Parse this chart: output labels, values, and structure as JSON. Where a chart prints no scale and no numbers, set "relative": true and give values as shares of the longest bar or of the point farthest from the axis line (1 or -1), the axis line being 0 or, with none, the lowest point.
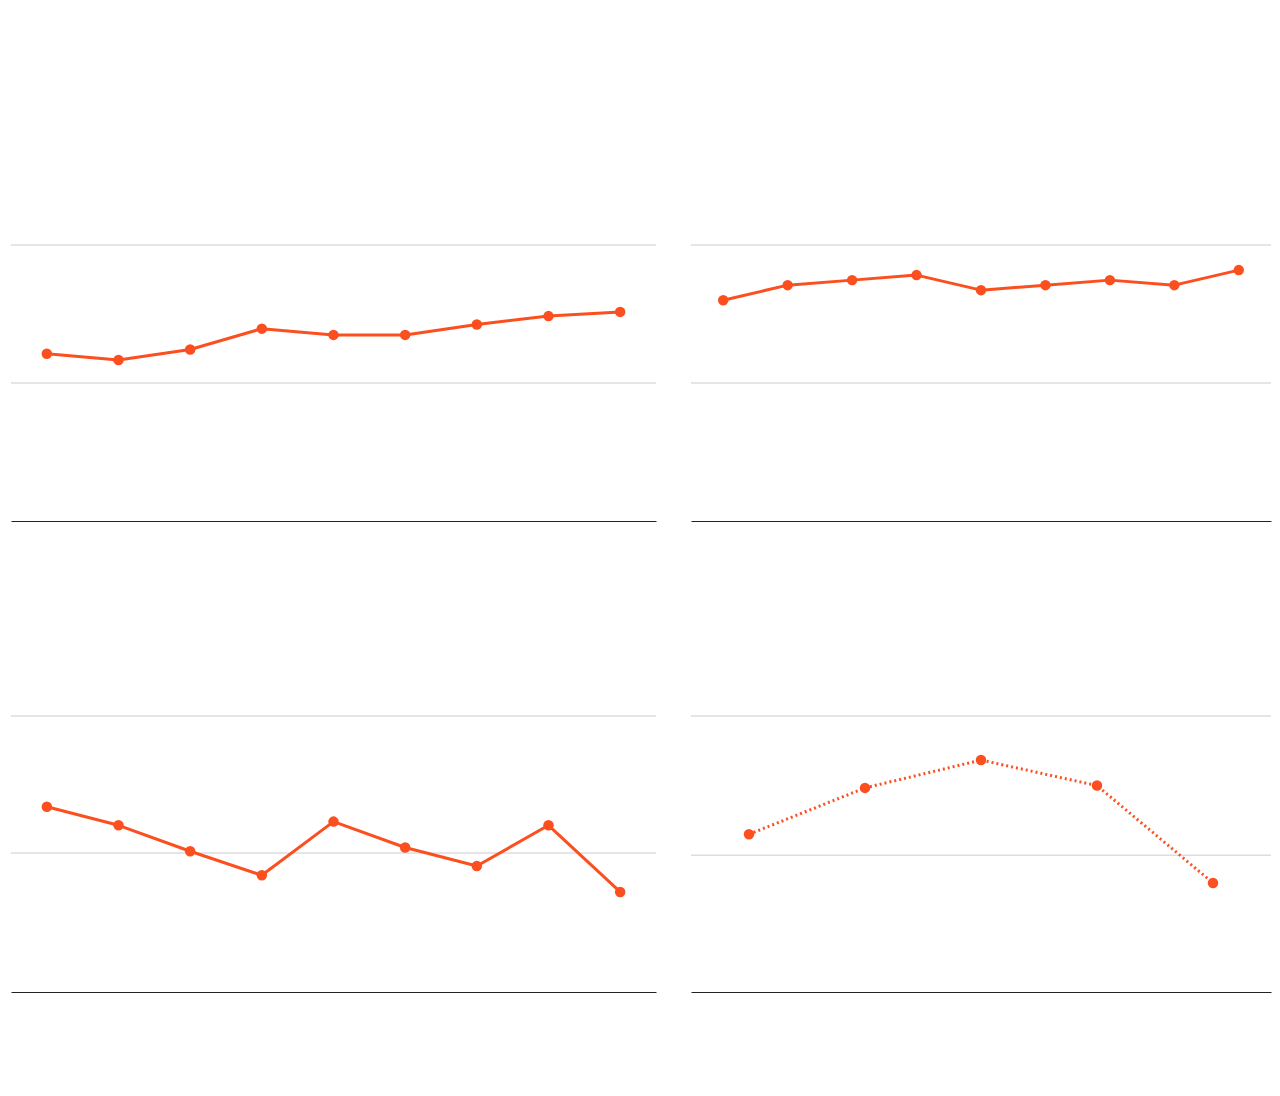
{
  "chart_data": [
    {
      "type": "line",
      "relative": true,
      "categories": [
        null,
        null,
        null,
        null,
        null,
        null,
        null,
        null,
        null
      ],
      "series": [
        {
          "color": "#fc4f1f",
          "values": [
            0.8,
            0.77,
            0.82,
            0.92,
            0.89,
            0.89,
            0.94,
            0.98,
            1
          ]
        }
      ],
      "marker": "circle",
      "line_style": "solid",
      "ref_lines": [
        {
          "axis": "y",
          "value": 0.66,
          "color": "#dddddd"
        },
        {
          "axis": "y",
          "value": 1.32,
          "color": "#dddddd"
        }
      ]
    },
    {
      "type": "line",
      "relative": true,
      "categories": [
        null,
        null,
        null,
        null,
        null,
        null,
        null,
        null,
        null
      ],
      "series": [
        {
          "color": "#fc4f1f",
          "values": [
            0.88,
            0.94,
            0.96,
            0.98,
            0.92,
            0.94,
            0.96,
            0.94,
            1
          ]
        }
      ],
      "marker": "circle",
      "line_style": "solid",
      "ref_lines": [
        {
          "axis": "y",
          "value": 0.55,
          "color": "#dddddd"
        },
        {
          "axis": "y",
          "value": 1.1,
          "color": "#dddddd"
        }
      ]
    },
    {
      "type": "line",
      "relative": true,
      "categories": [
        null,
        null,
        null,
        null,
        null,
        null,
        null,
        null,
        null
      ],
      "series": [
        {
          "color": "#fc4f1f",
          "values": [
            1,
            0.9,
            0.76,
            0.63,
            0.92,
            0.78,
            0.68,
            0.9,
            0.54
          ]
        }
      ],
      "marker": "circle",
      "line_style": "solid",
      "ref_lines": [
        {
          "axis": "y",
          "value": 0.75,
          "color": "#dddddd"
        },
        {
          "axis": "y",
          "value": 1.49,
          "color": "#dddddd"
        }
      ]
    },
    {
      "type": "line",
      "relative": true,
      "categories": [
        null,
        null,
        null,
        null,
        null
      ],
      "series": [
        {
          "color": "#fc4f1f",
          "values": [
            0.68,
            0.88,
            1,
            0.89,
            0.47
          ]
        }
      ],
      "marker": "circle",
      "line_style": "dotted",
      "ref_lines": [
        {
          "axis": "y",
          "value": 0.59,
          "color": "#dddddd"
        },
        {
          "axis": "y",
          "value": 1.19,
          "color": "#dddddd"
        }
      ]
    }
  ]
}
